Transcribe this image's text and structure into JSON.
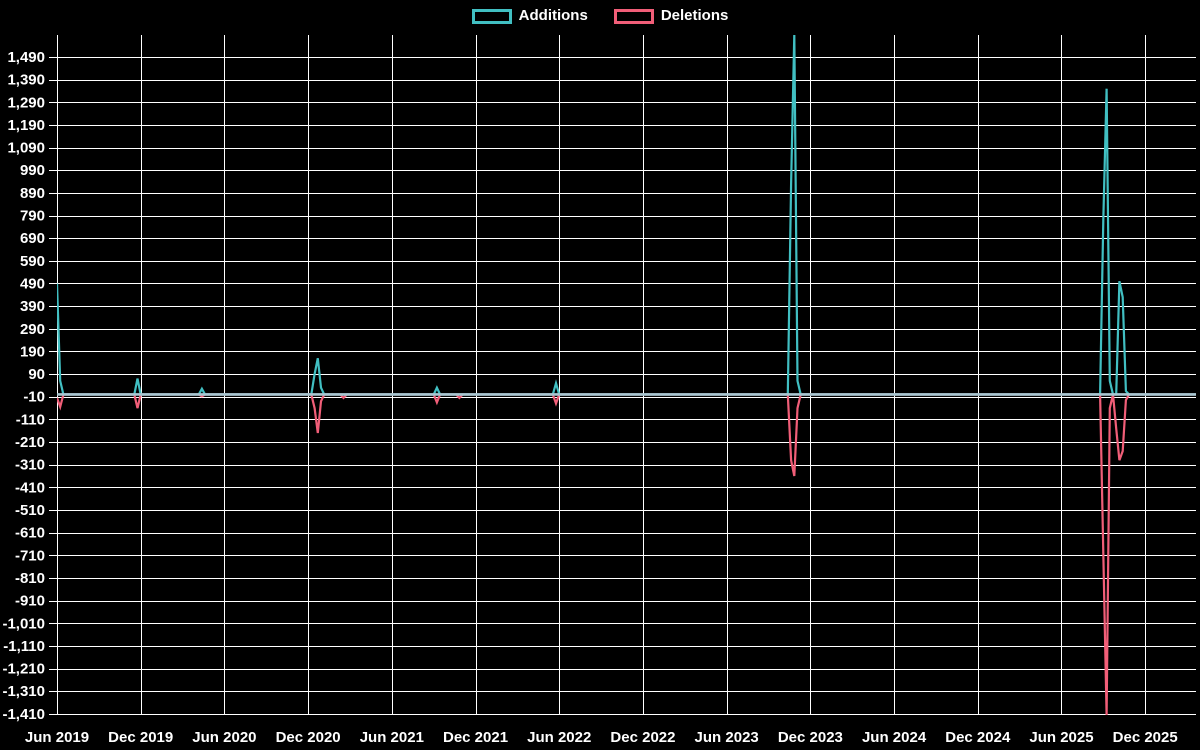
{
  "colors": {
    "background": "#000000",
    "grid": "#ffffff",
    "text": "#ffffff",
    "zero_band": "#a9c6d1"
  },
  "legend": {
    "items": [
      {
        "label": "Additions",
        "color": "#41bfc2"
      },
      {
        "label": "Deletions",
        "color": "#f15e78"
      }
    ]
  },
  "chart_data": {
    "type": "line",
    "title": "",
    "xlabel": "",
    "ylabel": "",
    "legend_position": "top-center",
    "grid": true,
    "x_tick_labels": [
      "Jun 2019",
      "Dec 2019",
      "Jun 2020",
      "Dec 2020",
      "Jun 2021",
      "Dec 2021",
      "Jun 2022",
      "Dec 2022",
      "Jun 2023",
      "Dec 2023",
      "Jun 2024",
      "Dec 2024",
      "Jun 2025",
      "Dec 2025"
    ],
    "x_tick_weeks": [
      0,
      26,
      52,
      78,
      104,
      130,
      156,
      182,
      208,
      234,
      260,
      286,
      312,
      338
    ],
    "y_ticks": [
      1490,
      1390,
      1290,
      1190,
      1090,
      990,
      890,
      790,
      690,
      590,
      490,
      390,
      290,
      190,
      90,
      -10,
      -110,
      -210,
      -310,
      -410,
      -510,
      -610,
      -710,
      -810,
      -910,
      -1010,
      -1110,
      -1210,
      -1310,
      -1410
    ],
    "ylim": [
      -1415,
      1587
    ],
    "weeks_total": 354,
    "baseline_value": 0,
    "series": [
      {
        "name": "Additions",
        "color": "#41bfc2",
        "events": [
          [
            0,
            490
          ],
          [
            1,
            60
          ],
          [
            25,
            70
          ],
          [
            45,
            25
          ],
          [
            80,
            90
          ],
          [
            81,
            160
          ],
          [
            82,
            30
          ],
          [
            118,
            30
          ],
          [
            155,
            50
          ],
          [
            228,
            930
          ],
          [
            229,
            1590
          ],
          [
            230,
            60
          ],
          [
            325,
            770
          ],
          [
            326,
            1350
          ],
          [
            327,
            60
          ],
          [
            330,
            500
          ],
          [
            331,
            430
          ],
          [
            332,
            15
          ]
        ]
      },
      {
        "name": "Deletions",
        "color": "#f15e78",
        "events": [
          [
            0,
            -15
          ],
          [
            1,
            -55
          ],
          [
            25,
            -60
          ],
          [
            45,
            -8
          ],
          [
            80,
            -60
          ],
          [
            81,
            -170
          ],
          [
            82,
            -30
          ],
          [
            89,
            -15
          ],
          [
            118,
            -35
          ],
          [
            125,
            -15
          ],
          [
            155,
            -40
          ],
          [
            228,
            -290
          ],
          [
            229,
            -360
          ],
          [
            230,
            -60
          ],
          [
            325,
            -700
          ],
          [
            326,
            -1415
          ],
          [
            327,
            -60
          ],
          [
            329,
            -150
          ],
          [
            330,
            -290
          ],
          [
            331,
            -250
          ],
          [
            332,
            -25
          ]
        ]
      }
    ]
  }
}
